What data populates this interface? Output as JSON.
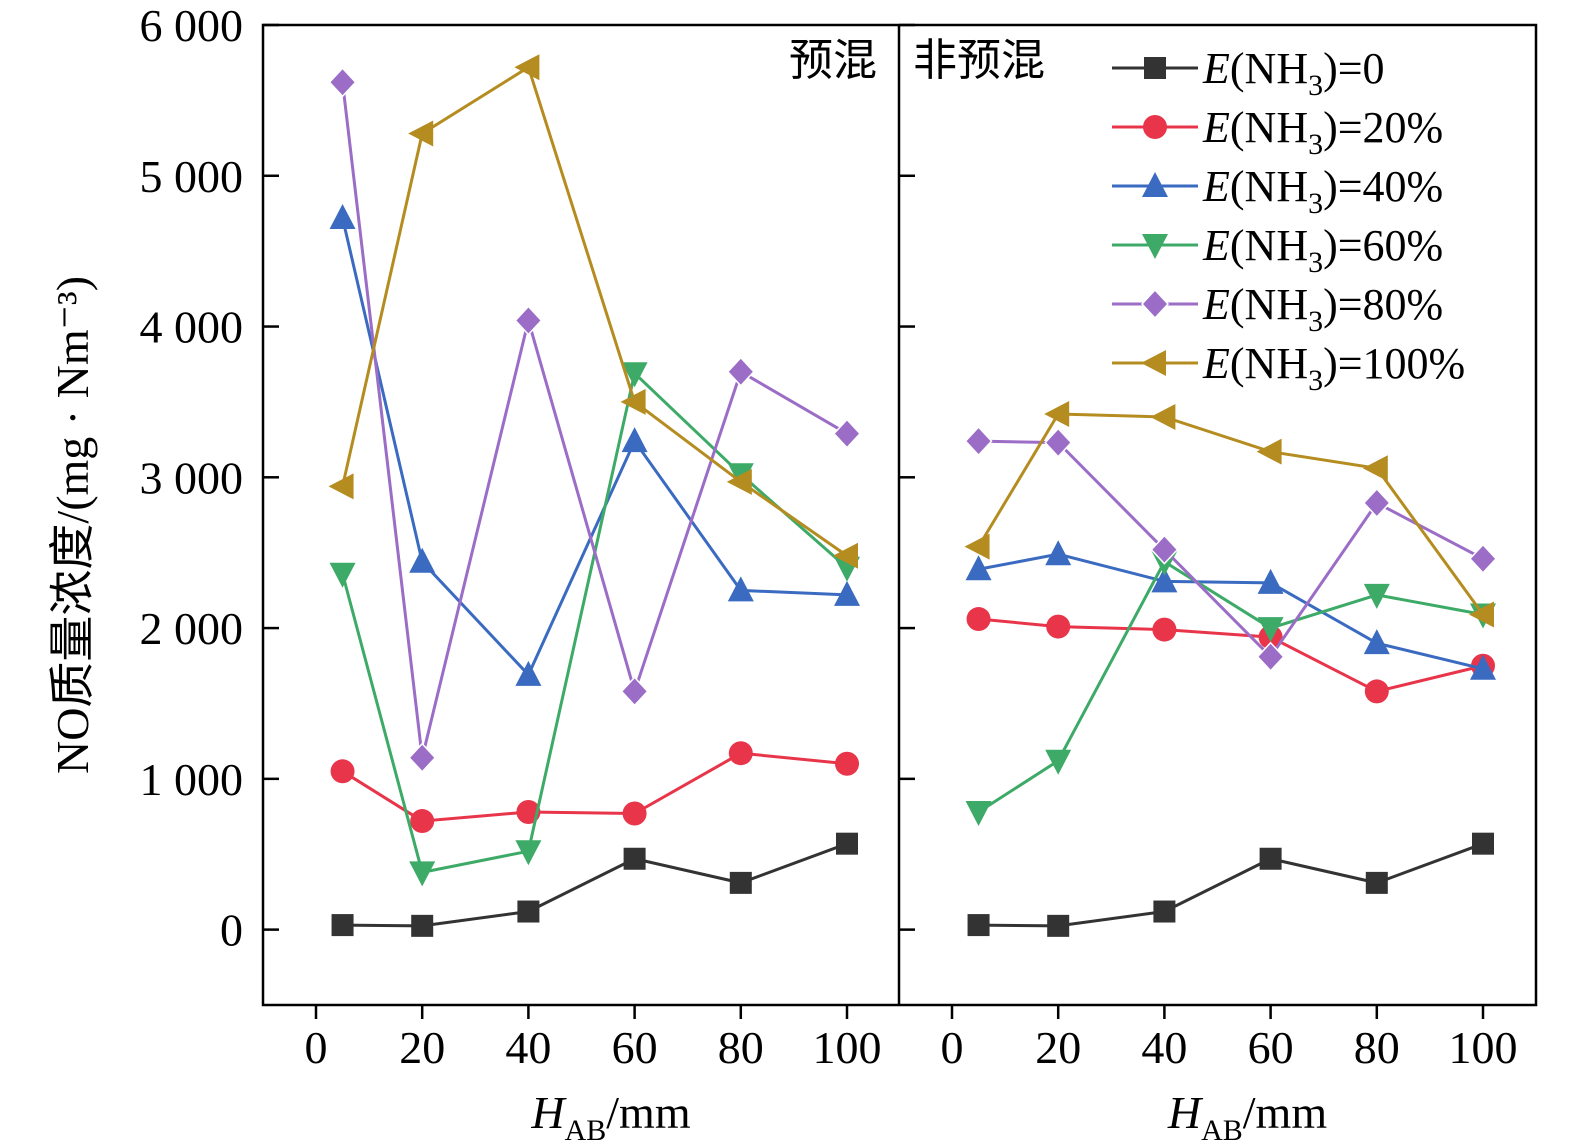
{
  "chart_data": {
    "type": "line",
    "ylabel": "NO质量浓度/(mg · Nm⁻³)",
    "ylim": [
      -500,
      6000
    ],
    "yticks": [
      0,
      1000,
      2000,
      3000,
      4000,
      5000,
      6000
    ],
    "ytick_labels": [
      "0",
      "1 000",
      "2 000",
      "3 000",
      "4 000",
      "5 000",
      "6 000"
    ],
    "xticks": [
      0,
      20,
      40,
      60,
      80,
      100
    ],
    "xtick_labels": [
      "0",
      "20",
      "40",
      "60",
      "80",
      "100"
    ],
    "xlim": [
      -10,
      110
    ],
    "xlabel": "H_AB/mm",
    "xlabel_main": "H",
    "xlabel_sub": "AB",
    "xlabel_unit": "/mm",
    "grid": false,
    "legend_position": "top-right",
    "x": [
      5,
      20,
      40,
      60,
      80,
      100
    ],
    "panels": [
      {
        "title": "预混",
        "series": [
          {
            "name": "E(NH3)=0",
            "color": "#333333",
            "marker": "square",
            "values": [
              30,
              25,
              120,
              470,
              310,
              570
            ]
          },
          {
            "name": "E(NH3)=20%",
            "color": "#e8354a",
            "marker": "circle",
            "values": [
              1050,
              720,
              780,
              770,
              1170,
              1100
            ]
          },
          {
            "name": "E(NH3)=40%",
            "color": "#3a6bc1",
            "marker": "triangle-up",
            "values": [
              4720,
              2440,
              1690,
              3240,
              2250,
              2220
            ]
          },
          {
            "name": "E(NH3)=60%",
            "color": "#3daa67",
            "marker": "triangle-down",
            "values": [
              2360,
              380,
              520,
              3690,
              3020,
              2400
            ]
          },
          {
            "name": "E(NH3)=80%",
            "color": "#9b6dc7",
            "marker": "diamond",
            "values": [
              5620,
              1140,
              4040,
              1580,
              3700,
              3290
            ]
          },
          {
            "name": "E(NH3)=100%",
            "color": "#b58c20",
            "marker": "triangle-left",
            "values": [
              2940,
              5280,
              5720,
              3500,
              2970,
              2480
            ]
          }
        ]
      },
      {
        "title": "非预混",
        "series": [
          {
            "name": "E(NH3)=0",
            "color": "#333333",
            "marker": "square",
            "values": [
              30,
              25,
              120,
              470,
              310,
              570
            ]
          },
          {
            "name": "E(NH3)=20%",
            "color": "#e8354a",
            "marker": "circle",
            "values": [
              2060,
              2010,
              1990,
              1940,
              1580,
              1750
            ]
          },
          {
            "name": "E(NH3)=40%",
            "color": "#3a6bc1",
            "marker": "triangle-up",
            "values": [
              2390,
              2490,
              2310,
              2300,
              1900,
              1730
            ]
          },
          {
            "name": "E(NH3)=60%",
            "color": "#3daa67",
            "marker": "triangle-down",
            "values": [
              780,
              1120,
              2440,
              2000,
              2220,
              2090
            ]
          },
          {
            "name": "E(NH3)=80%",
            "color": "#9b6dc7",
            "marker": "diamond",
            "values": [
              3240,
              3230,
              2520,
              1810,
              2830,
              2460
            ]
          },
          {
            "name": "E(NH3)=100%",
            "color": "#b58c20",
            "marker": "triangle-left",
            "values": [
              2540,
              3420,
              3400,
              3170,
              3060,
              2090
            ]
          }
        ]
      }
    ],
    "legend": [
      {
        "italic": "E",
        "text": "(NH",
        "sub": "3",
        "tail": ")=0",
        "color": "#333333",
        "marker": "square"
      },
      {
        "italic": "E",
        "text": "(NH",
        "sub": "3",
        "tail": ")=20%",
        "color": "#e8354a",
        "marker": "circle"
      },
      {
        "italic": "E",
        "text": "(NH",
        "sub": "3",
        "tail": ")=40%",
        "color": "#3a6bc1",
        "marker": "triangle-up"
      },
      {
        "italic": "E",
        "text": "(NH",
        "sub": "3",
        "tail": ")=60%",
        "color": "#3daa67",
        "marker": "triangle-down"
      },
      {
        "italic": "E",
        "text": "(NH",
        "sub": "3",
        "tail": ")=80%",
        "color": "#9b6dc7",
        "marker": "diamond"
      },
      {
        "italic": "E",
        "text": "(NH",
        "sub": "3",
        "tail": ")=100%",
        "color": "#b58c20",
        "marker": "triangle-left"
      }
    ]
  }
}
